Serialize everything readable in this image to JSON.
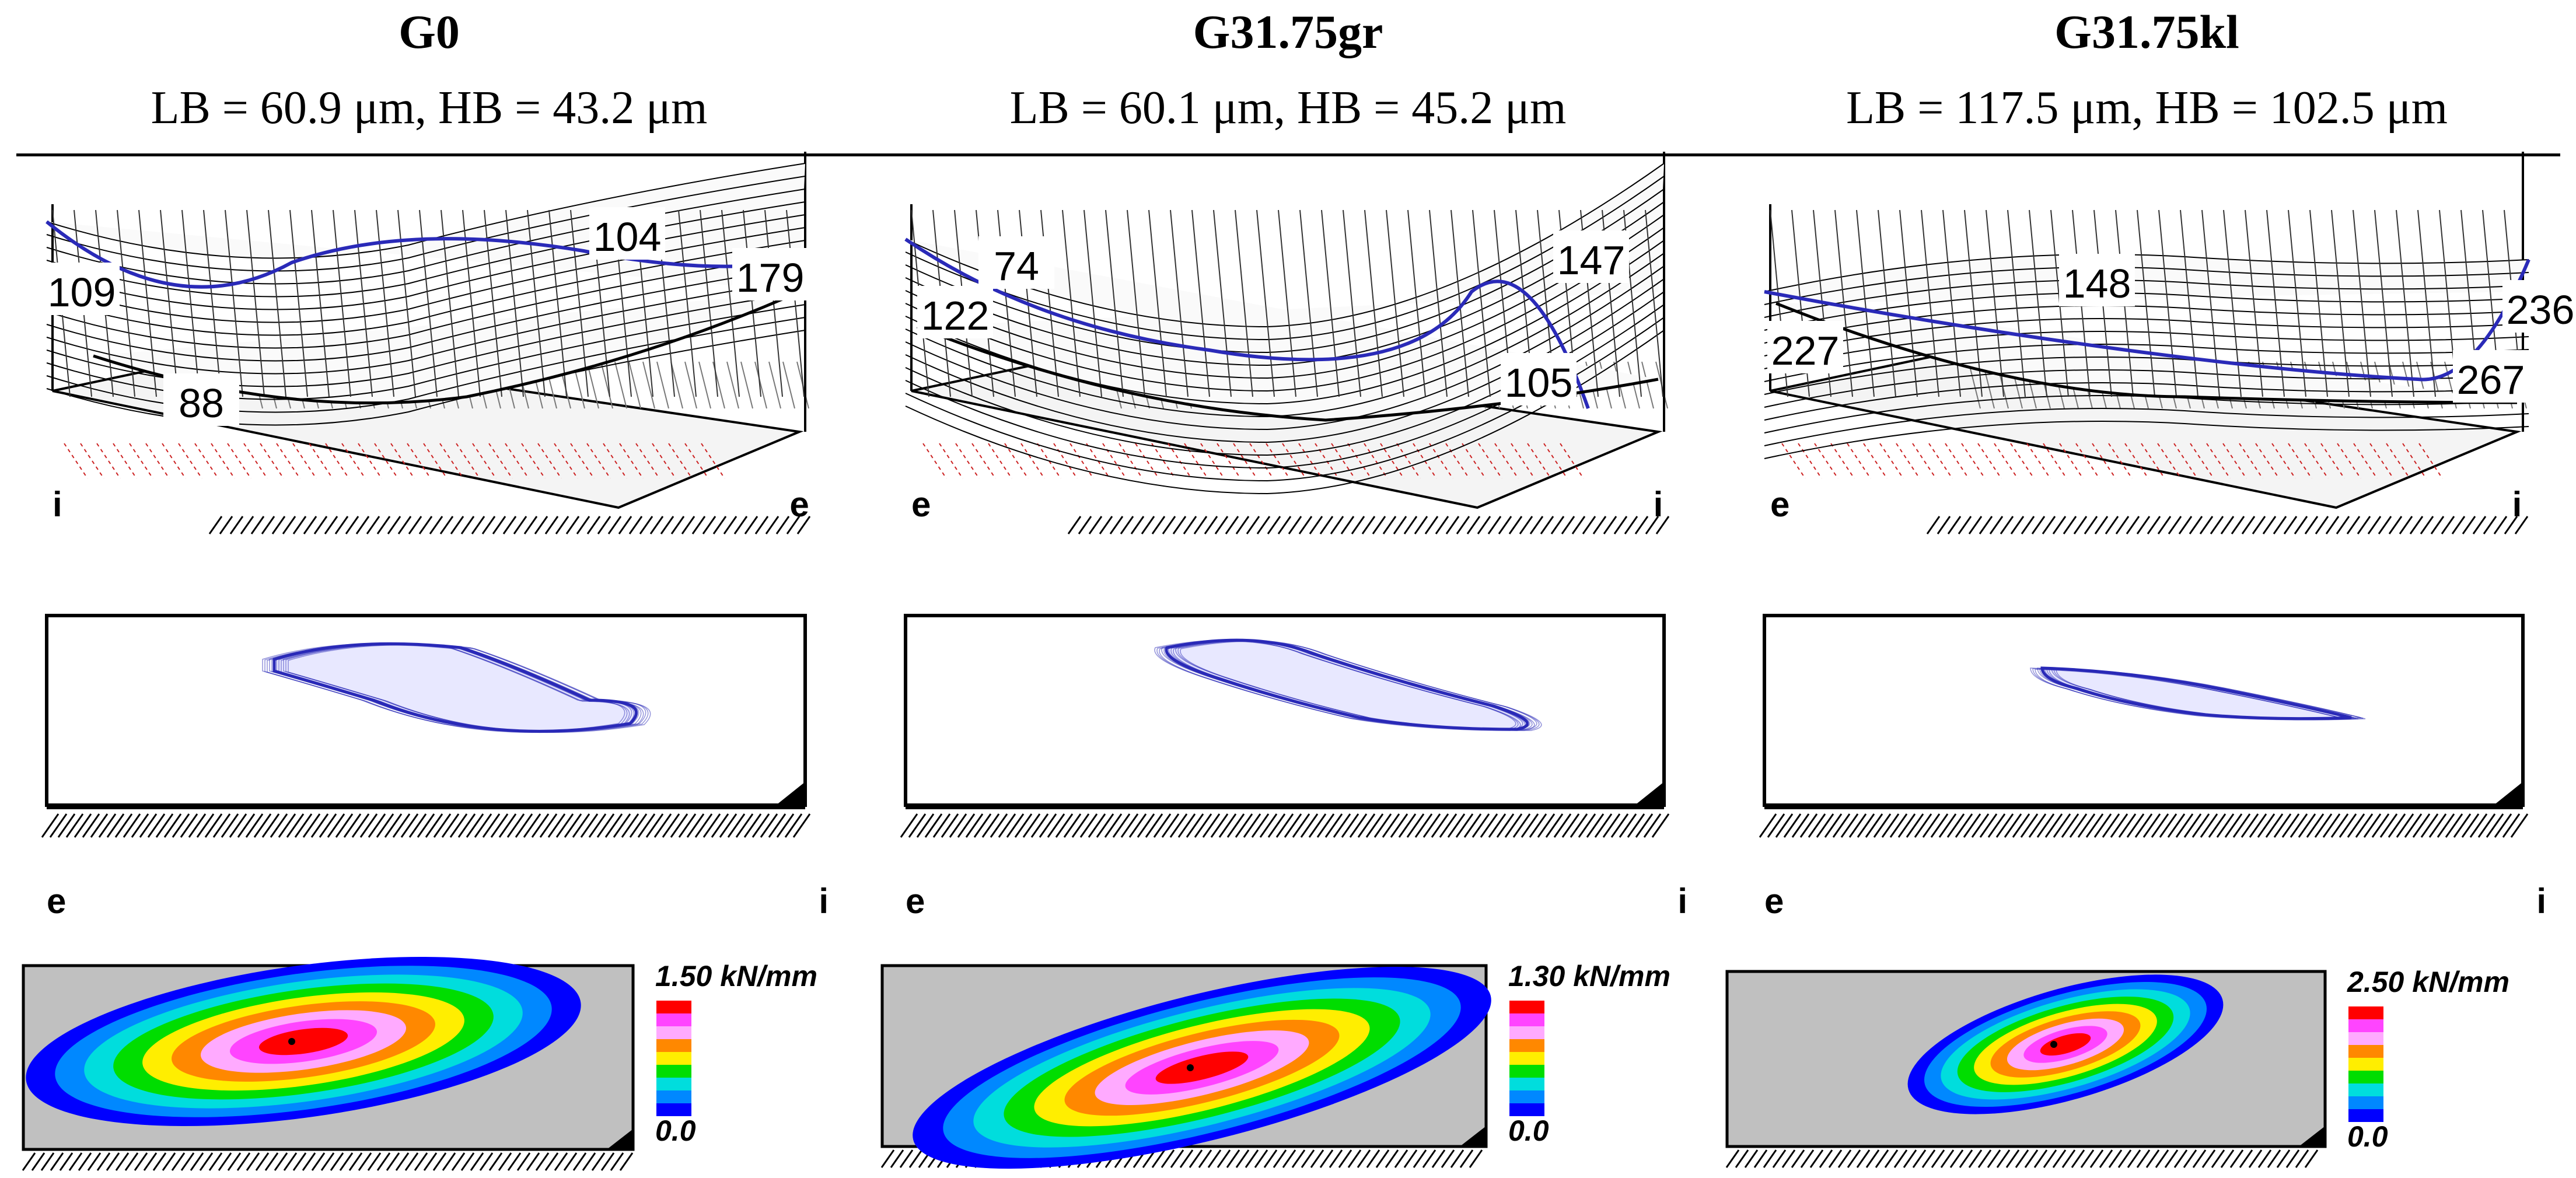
{
  "figure": {
    "panels": [
      {
        "name": "G0",
        "measures": "LB = 60.9 μm, HB = 43.2 μm",
        "surface_values": [
          "109",
          "104",
          "179",
          "88"
        ],
        "surface_axis_left": "i",
        "surface_axis_right": "e",
        "plan_axis_left": "e",
        "plan_axis_right": "i",
        "scale_max": "1.50 kN/mm",
        "scale_min": "0.0"
      },
      {
        "name": "G31.75gr",
        "measures": "LB = 60.1 μm, HB = 45.2 μm",
        "surface_values": [
          "74",
          "147",
          "122",
          "105"
        ],
        "surface_axis_left": "e",
        "surface_axis_right": "i",
        "plan_axis_left": "e",
        "plan_axis_right": "i",
        "scale_max": "1.30 kN/mm",
        "scale_min": "0.0"
      },
      {
        "name": "G31.75kl",
        "measures": "LB = 117.5 μm, HB = 102.5 μm",
        "surface_values": [
          "148",
          "236",
          "227",
          "267"
        ],
        "surface_axis_left": "e",
        "surface_axis_right": "i",
        "plan_axis_left": "e",
        "plan_axis_right": "i",
        "scale_max": "2.50 kN/mm",
        "scale_min": "0.0"
      }
    ],
    "colors": {
      "mesh_blue": "#2a2ab8",
      "floor_red": "#cc2222",
      "contour_bg": "#c0c0c0",
      "color_scale": [
        "#ff0000",
        "#ff44ff",
        "#ffaaff",
        "#ff8800",
        "#ffee00",
        "#00dd00",
        "#00dddd",
        "#0088ff",
        "#0000ff"
      ]
    }
  }
}
